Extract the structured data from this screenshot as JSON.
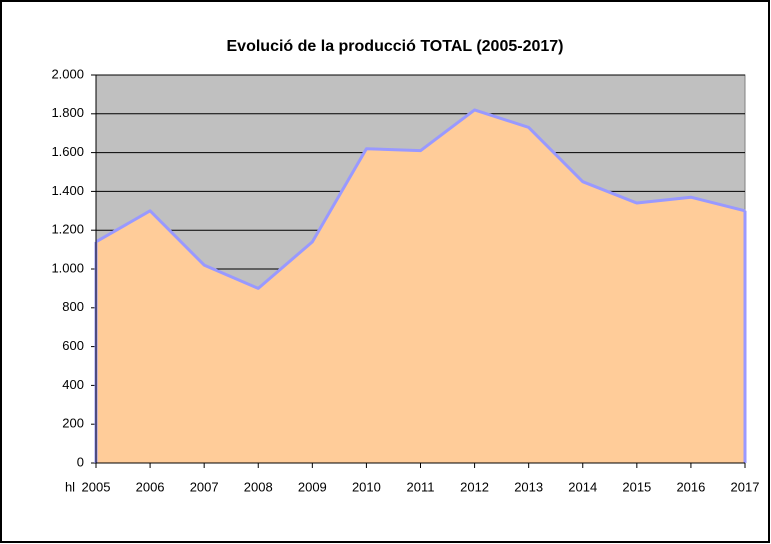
{
  "chart_data": {
    "type": "area",
    "title": "Evolució de la producció TOTAL (2005-2017)",
    "x_label": "hl",
    "categories": [
      "2005",
      "2006",
      "2007",
      "2008",
      "2009",
      "2010",
      "2011",
      "2012",
      "2013",
      "2014",
      "2015",
      "2016",
      "2017"
    ],
    "series": [
      {
        "name": "TOTAL",
        "color": "#ffcc99",
        "line_color": "#9999ff",
        "values": [
          1140,
          1300,
          1020,
          900,
          1140,
          1620,
          1610,
          1820,
          1730,
          1450,
          1340,
          1370,
          1300
        ]
      }
    ],
    "ylim": [
      0,
      2000
    ],
    "yticks": [
      0,
      200,
      400,
      600,
      800,
      {
        "value": 1000,
        "label": "1.000"
      },
      {
        "value": 1200,
        "label": "1.200"
      },
      {
        "value": 1400,
        "label": "1.400"
      },
      {
        "value": 1600,
        "label": "1.600"
      },
      {
        "value": 1800,
        "label": "1.800"
      },
      {
        "value": 2000,
        "label": "2.000"
      }
    ],
    "grid": true,
    "plot_background": "#c0c0c0"
  }
}
